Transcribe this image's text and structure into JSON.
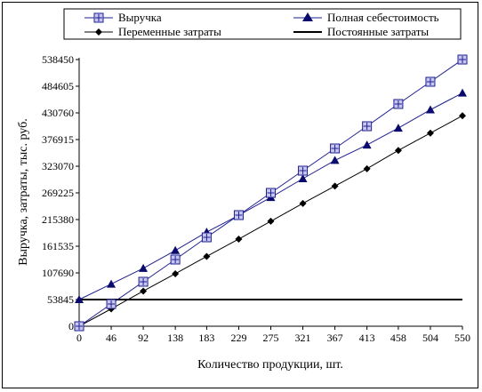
{
  "chart_data": {
    "type": "line",
    "title": "",
    "xlabel": "Количество продукции, шт.",
    "ylabel": "Выручка, затраты, тыс. руб.",
    "x": [
      0,
      46,
      92,
      138,
      183,
      229,
      275,
      321,
      367,
      413,
      458,
      504,
      550
    ],
    "x_tick_labels": [
      "0",
      "46",
      "92",
      "138",
      "183",
      "229",
      "275",
      "321",
      "367",
      "413",
      "458",
      "504",
      "550"
    ],
    "y_ticks": [
      0,
      53845,
      107690,
      161535,
      215380,
      269225,
      323070,
      376915,
      430760,
      484605,
      538450
    ],
    "y_tick_labels": [
      "0",
      "53845",
      "107690",
      "161535",
      "215380",
      "269225",
      "323070",
      "376915",
      "430760",
      "484605",
      "538450"
    ],
    "ylim": [
      0,
      538450
    ],
    "xlim": [
      0,
      550
    ],
    "grid": false,
    "legend_position": "top",
    "series": [
      {
        "name": "Выручка",
        "color": "#1f1f8f",
        "marker": "square-plus",
        "marker_fill": "#c6c6f0",
        "values": [
          0,
          44871,
          89742,
          134613,
          179484,
          224355,
          269225,
          314096,
          358967,
          403838,
          448709,
          493580,
          538450
        ]
      },
      {
        "name": "Полная себестоимость",
        "color": "#1f1f8f",
        "marker": "triangle",
        "marker_fill": "#0a0a6e",
        "values": [
          53845,
          85000,
          117000,
          153000,
          190000,
          224000,
          260000,
          298000,
          335000,
          366000,
          400000,
          437000,
          471000
        ]
      },
      {
        "name": "Переменные затраты",
        "color": "#000000",
        "marker": "diamond",
        "marker_fill": "#000000",
        "values": [
          0,
          35000,
          71000,
          106000,
          141000,
          176000,
          212000,
          248000,
          283000,
          318000,
          355000,
          390000,
          425000
        ]
      },
      {
        "name": "Постоянные затраты",
        "color": "#000000",
        "marker": "none",
        "marker_fill": "none",
        "values": [
          53845,
          53845,
          53845,
          53845,
          53845,
          53845,
          53845,
          53845,
          53845,
          53845,
          53845,
          53845,
          53845
        ]
      }
    ]
  }
}
